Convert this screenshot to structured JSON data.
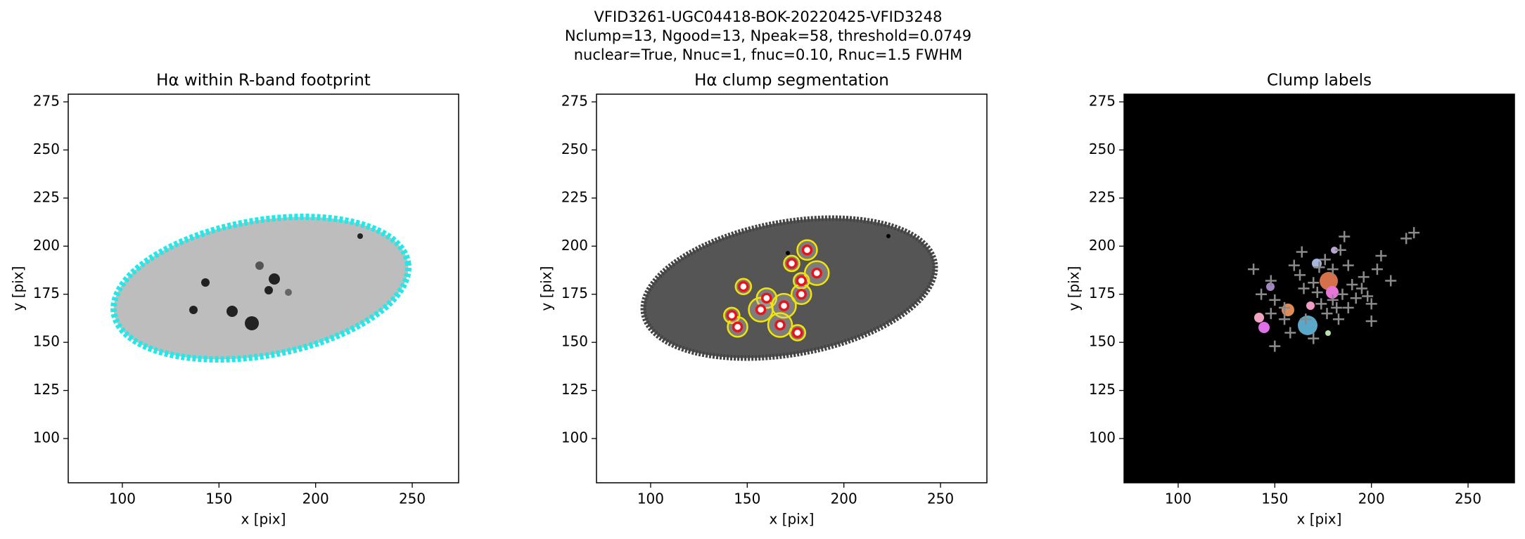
{
  "title": [
    "VFID3261-UGC04418-BOK-20220425-VFID3248",
    "Nclump=13, Ngood=13, Npeak=58, threshold=0.0749",
    "nuclear=True, Nnuc=1, fnuc=0.10, Rnuc=1.5 FWHM"
  ],
  "chart_data": [
    {
      "type": "image",
      "title": "Hα within R-band footprint",
      "xlabel": "x [pix]",
      "ylabel": "y [pix]",
      "xlim": [
        72,
        274
      ],
      "ylim": [
        77,
        279
      ],
      "xticks": [
        100,
        150,
        200,
        250
      ],
      "yticks": [
        100,
        125,
        150,
        175,
        200,
        225,
        250,
        275
      ]
    },
    {
      "type": "scatter",
      "title": "Hα clump segmentation",
      "xlabel": "x [pix]",
      "ylabel": "y [pix]",
      "xlim": [
        72,
        274
      ],
      "ylim": [
        77,
        279
      ],
      "xticks": [
        100,
        150,
        200,
        250
      ],
      "yticks": [
        100,
        125,
        150,
        175,
        200,
        225,
        250,
        275
      ],
      "color": "#e8141c",
      "x": [
        148,
        160,
        157,
        142,
        145,
        169,
        173,
        181,
        186,
        178,
        178,
        167,
        176
      ],
      "y": [
        179,
        173,
        167,
        164,
        158,
        169,
        191,
        198,
        186,
        182,
        175,
        159,
        155
      ]
    },
    {
      "type": "peaks",
      "title": "Clump labels",
      "xlabel": "x [pix]",
      "ylabel": "y [pix]",
      "xlim": [
        72,
        274
      ],
      "ylim": [
        77,
        279
      ],
      "xticks": [
        100,
        150,
        200,
        250
      ],
      "yticks": [
        100,
        125,
        150,
        175,
        200,
        225,
        250,
        275
      ],
      "color": "#8a8a8a",
      "x": [
        139,
        148,
        143,
        150,
        148,
        150,
        155,
        160,
        164,
        163,
        165,
        170,
        173,
        174,
        177,
        180,
        182,
        183,
        185,
        186,
        188,
        190,
        192,
        195,
        198,
        200,
        200,
        203,
        205,
        210,
        218,
        222,
        170,
        166,
        158,
        155,
        180,
        176,
        184,
        172,
        188,
        196
      ],
      "y": [
        188,
        182,
        175,
        172,
        165,
        148,
        168,
        190,
        197,
        185,
        178,
        181,
        189,
        170,
        165,
        172,
        168,
        162,
        175,
        205,
        190,
        180,
        173,
        178,
        174,
        170,
        161,
        188,
        195,
        182,
        204,
        207,
        152,
        162,
        155,
        162,
        188,
        193,
        198,
        176,
        168,
        184
      ]
    }
  ]
}
